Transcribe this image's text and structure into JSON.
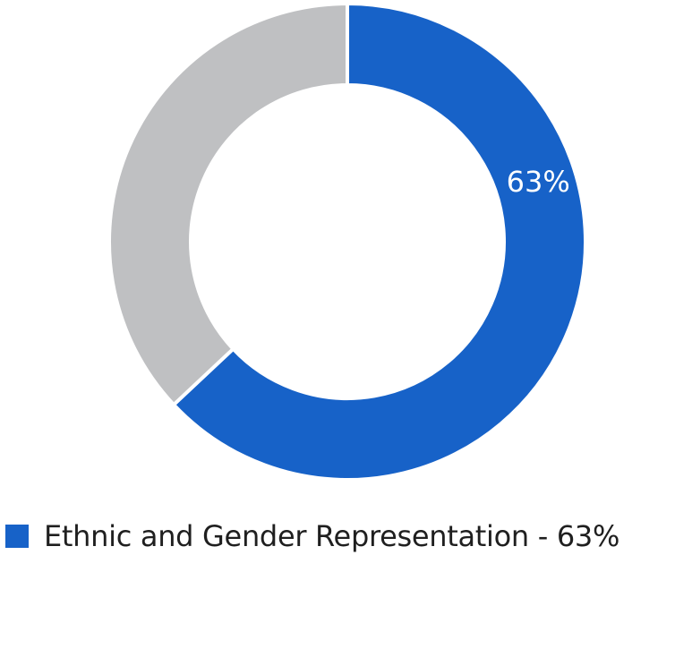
{
  "chart_data": {
    "type": "pie",
    "categories": [
      "Ethnic and Gender Representation",
      ""
    ],
    "values": [
      63,
      37
    ],
    "colors": [
      "#1762c8",
      "#bfc0c2"
    ],
    "data_labels": [
      "63%",
      ""
    ],
    "legend": [
      {
        "label": "Ethnic and Gender Representation - 63%",
        "color": "#1762c8"
      }
    ],
    "legend_position": "bottom-left"
  }
}
